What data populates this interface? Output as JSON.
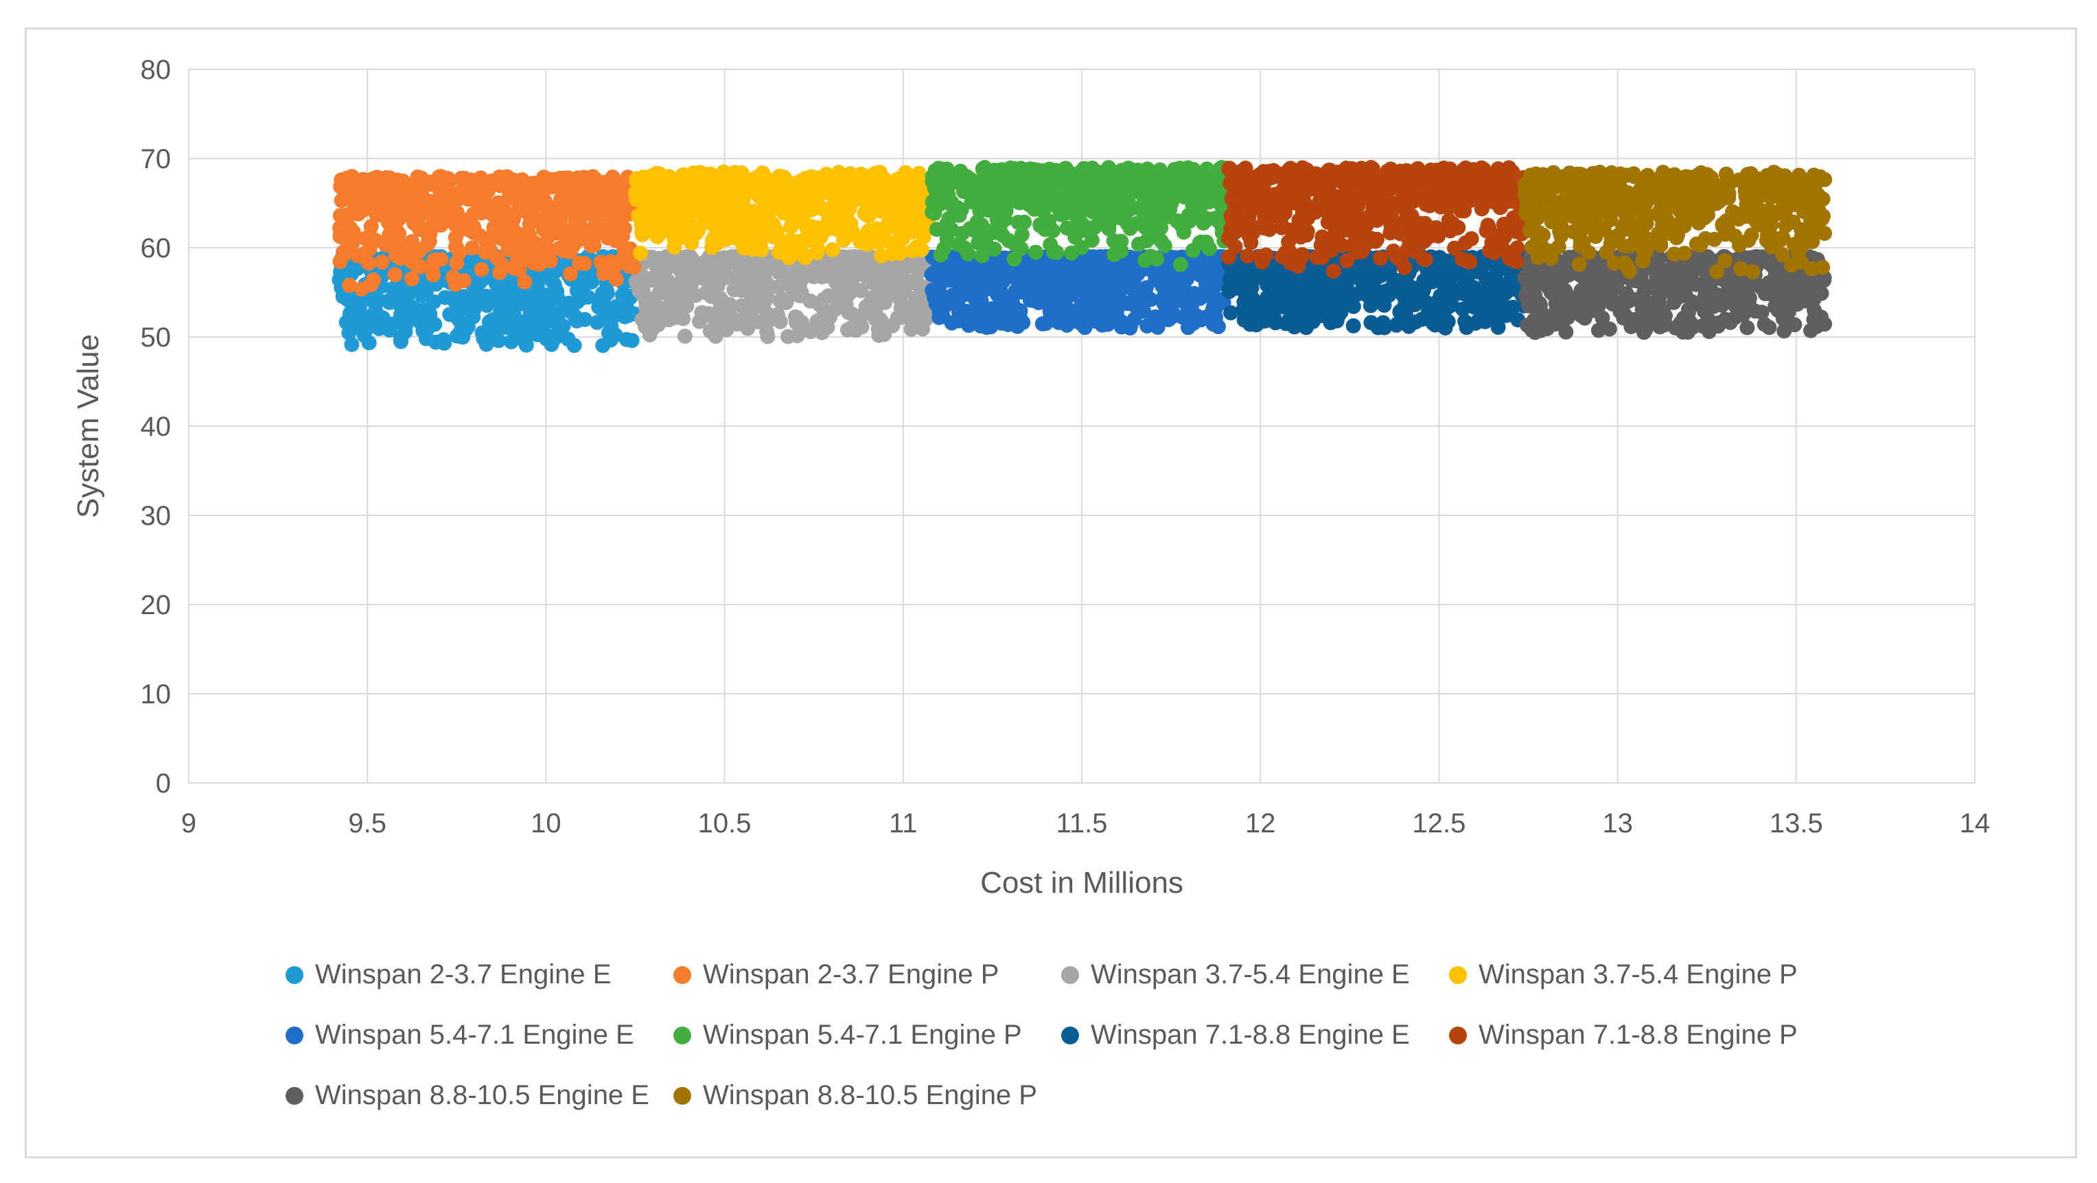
{
  "chart_data": {
    "type": "scatter",
    "title": "",
    "xlabel": "Cost in Millions",
    "ylabel": "System Value",
    "xlim": [
      9,
      14
    ],
    "ylim": [
      0,
      80
    ],
    "x_ticks": [
      "9",
      "9.5",
      "10",
      "10.5",
      "11",
      "11.5",
      "12",
      "12.5",
      "13",
      "13.5",
      "14"
    ],
    "y_ticks": [
      "0",
      "10",
      "20",
      "30",
      "40",
      "50",
      "60",
      "70",
      "80"
    ],
    "grid": true,
    "legend_position": "bottom",
    "series": [
      {
        "name": "Winspan 2-3.7 Engine E",
        "color": "#1f9ad6",
        "x_range": [
          9.42,
          10.25
        ],
        "y_range": [
          49,
          59
        ]
      },
      {
        "name": "Winspan 2-3.7 Engine P",
        "color": "#f47c2c",
        "x_range": [
          9.42,
          10.25
        ],
        "y_range": [
          55,
          68
        ]
      },
      {
        "name": "Winspan 3.7-5.4 Engine E",
        "color": "#a6a6a6",
        "x_range": [
          10.25,
          11.08
        ],
        "y_range": [
          50,
          59
        ]
      },
      {
        "name": "Winspan 3.7-5.4 Engine P",
        "color": "#ffc000",
        "x_range": [
          10.25,
          11.08
        ],
        "y_range": [
          58,
          68.5
        ]
      },
      {
        "name": "Winspan 5.4-7.1 Engine E",
        "color": "#1f6fc9",
        "x_range": [
          11.08,
          11.91
        ],
        "y_range": [
          51,
          59
        ]
      },
      {
        "name": "Winspan 5.4-7.1 Engine P",
        "color": "#43ad3e",
        "x_range": [
          11.08,
          11.91
        ],
        "y_range": [
          58,
          69
        ]
      },
      {
        "name": "Winspan 7.1-8.8 Engine E",
        "color": "#0a5c94",
        "x_range": [
          11.91,
          12.74
        ],
        "y_range": [
          51,
          59
        ]
      },
      {
        "name": "Winspan 7.1-8.8 Engine P",
        "color": "#b7440c",
        "x_range": [
          11.91,
          12.74
        ],
        "y_range": [
          57,
          69
        ]
      },
      {
        "name": "Winspan 8.8-10.5 Engine E",
        "color": "#5f5f5f",
        "x_range": [
          12.74,
          13.58
        ],
        "y_range": [
          50.5,
          59
        ]
      },
      {
        "name": "Winspan 8.8-10.5 Engine P",
        "color": "#a27400",
        "x_range": [
          12.74,
          13.58
        ],
        "y_range": [
          57,
          68.5
        ]
      }
    ]
  }
}
